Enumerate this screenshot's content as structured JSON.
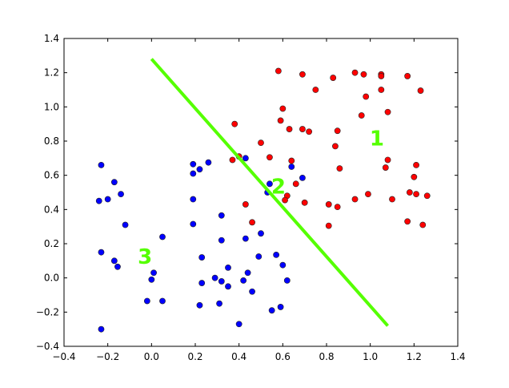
{
  "chart_data": {
    "type": "scatter",
    "title": "",
    "xlabel": "",
    "ylabel": "",
    "xlim": [
      -0.4,
      1.4
    ],
    "ylim": [
      -0.4,
      1.4
    ],
    "xticks": [
      "−0.4",
      "−0.2",
      "0.0",
      "0.2",
      "0.4",
      "0.6",
      "0.8",
      "1.0",
      "1.2",
      "1.4"
    ],
    "yticks": [
      "−0.4",
      "−0.2",
      "0.0",
      "0.2",
      "0.4",
      "0.6",
      "0.8",
      "1.0",
      "1.2",
      "1.4"
    ],
    "grid": false,
    "colors": {
      "blue": "#0000ff",
      "red": "#ff0000",
      "line": "#55ff00",
      "label": "#55ff00"
    },
    "series": [
      {
        "color": "#0000ff",
        "points": [
          [
            -0.23,
            0.66
          ],
          [
            -0.17,
            0.56
          ],
          [
            -0.14,
            0.49
          ],
          [
            -0.2,
            0.46
          ],
          [
            -0.24,
            0.45
          ],
          [
            -0.12,
            0.31
          ],
          [
            -0.23,
            0.15
          ],
          [
            -0.17,
            0.1
          ],
          [
            -0.155,
            0.065
          ],
          [
            0.05,
            0.24
          ],
          [
            0.01,
            0.03
          ],
          [
            0.0,
            -0.01
          ],
          [
            -0.02,
            -0.135
          ],
          [
            0.05,
            -0.135
          ],
          [
            -0.23,
            -0.3
          ],
          [
            0.19,
            0.665
          ],
          [
            0.22,
            0.635
          ],
          [
            0.26,
            0.675
          ],
          [
            0.19,
            0.61
          ],
          [
            0.19,
            0.46
          ],
          [
            0.19,
            0.315
          ],
          [
            0.32,
            0.365
          ],
          [
            0.32,
            0.22
          ],
          [
            0.23,
            0.12
          ],
          [
            0.43,
            0.7
          ],
          [
            0.43,
            0.23
          ],
          [
            0.35,
            0.06
          ],
          [
            0.29,
            0.0
          ],
          [
            0.32,
            -0.02
          ],
          [
            0.35,
            -0.05
          ],
          [
            0.23,
            -0.03
          ],
          [
            0.42,
            -0.015
          ],
          [
            0.44,
            0.03
          ],
          [
            0.46,
            -0.08
          ],
          [
            0.22,
            -0.16
          ],
          [
            0.31,
            -0.15
          ],
          [
            0.4,
            -0.27
          ],
          [
            0.49,
            0.125
          ],
          [
            0.5,
            0.26
          ],
          [
            0.57,
            0.135
          ],
          [
            0.6,
            0.075
          ],
          [
            0.62,
            -0.015
          ],
          [
            0.55,
            -0.19
          ],
          [
            0.59,
            -0.17
          ],
          [
            0.54,
            0.55
          ],
          [
            0.53,
            0.5
          ],
          [
            0.64,
            0.65
          ],
          [
            0.69,
            0.585
          ]
        ]
      },
      {
        "color": "#ff0000",
        "points": [
          [
            0.38,
            0.9
          ],
          [
            0.4,
            0.71
          ],
          [
            0.37,
            0.69
          ],
          [
            0.43,
            0.43
          ],
          [
            0.46,
            0.325
          ],
          [
            0.5,
            0.79
          ],
          [
            0.54,
            0.705
          ],
          [
            0.58,
            1.21
          ],
          [
            0.59,
            0.92
          ],
          [
            0.6,
            0.99
          ],
          [
            0.63,
            0.87
          ],
          [
            0.64,
            0.685
          ],
          [
            0.62,
            0.48
          ],
          [
            0.61,
            0.455
          ],
          [
            0.66,
            0.55
          ],
          [
            0.69,
            1.19
          ],
          [
            0.69,
            0.87
          ],
          [
            0.72,
            0.855
          ],
          [
            0.75,
            1.1
          ],
          [
            0.7,
            0.44
          ],
          [
            0.81,
            0.43
          ],
          [
            0.81,
            0.305
          ],
          [
            0.83,
            1.17
          ],
          [
            0.84,
            0.77
          ],
          [
            0.85,
            0.86
          ],
          [
            0.86,
            0.64
          ],
          [
            0.85,
            0.415
          ],
          [
            0.93,
            1.2
          ],
          [
            0.97,
            1.19
          ],
          [
            0.98,
            1.06
          ],
          [
            0.96,
            0.95
          ],
          [
            1.05,
            1.19
          ],
          [
            1.05,
            1.18
          ],
          [
            1.05,
            1.1
          ],
          [
            1.08,
            0.97
          ],
          [
            0.93,
            0.46
          ],
          [
            0.99,
            0.49
          ],
          [
            1.08,
            0.69
          ],
          [
            1.07,
            0.645
          ],
          [
            1.1,
            0.46
          ],
          [
            1.17,
            1.18
          ],
          [
            1.23,
            1.095
          ],
          [
            1.21,
            0.66
          ],
          [
            1.2,
            0.59
          ],
          [
            1.18,
            0.5
          ],
          [
            1.21,
            0.49
          ],
          [
            1.26,
            0.48
          ],
          [
            1.17,
            0.33
          ],
          [
            1.24,
            0.31
          ]
        ]
      }
    ],
    "line": [
      [
        0.0,
        1.28
      ],
      [
        1.08,
        -0.28
      ]
    ],
    "annotations": [
      {
        "text": "1",
        "x": 1.03,
        "y": 0.82
      },
      {
        "text": "2",
        "x": 0.58,
        "y": 0.54
      },
      {
        "text": "3",
        "x": -0.03,
        "y": 0.13
      }
    ]
  }
}
